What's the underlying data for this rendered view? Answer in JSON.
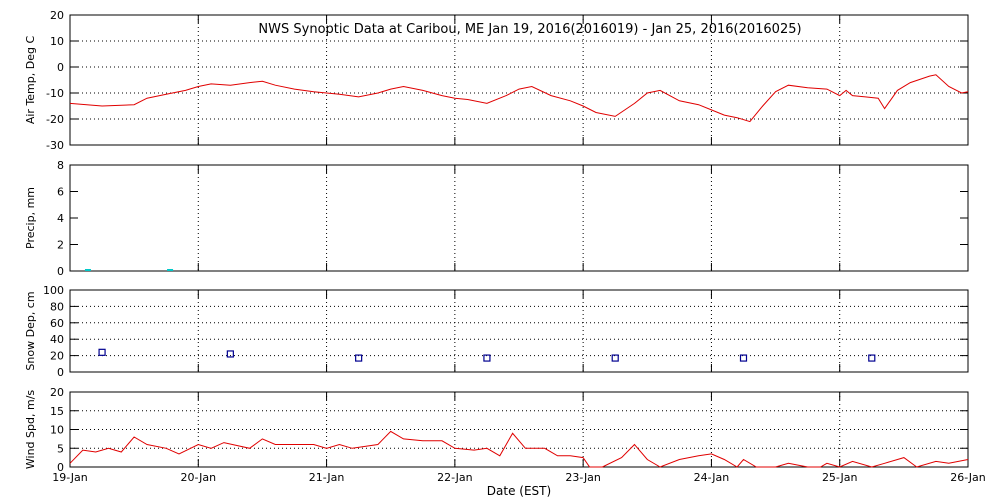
{
  "chart_data": [
    {
      "type": "line",
      "title": "NWS Synoptic Data at Caribou, ME   Jan 19, 2016(2016019) - Jan 25, 2016(2016025)",
      "ylabel": "Air Temp, Deg C",
      "grid": "both",
      "xlim": [
        0,
        7
      ],
      "xticks": [
        0,
        1,
        2,
        3,
        4,
        5,
        6,
        7
      ],
      "ylim": [
        -30,
        20
      ],
      "yticks": [
        -30,
        -20,
        -10,
        0,
        10,
        20
      ],
      "series": [
        {
          "color": "#e00000",
          "x": [
            0,
            0.25,
            0.5,
            0.6,
            0.75,
            0.9,
            1.0,
            1.1,
            1.25,
            1.4,
            1.5,
            1.6,
            1.75,
            1.9,
            2.0,
            2.1,
            2.25,
            2.4,
            2.5,
            2.6,
            2.75,
            2.9,
            3.0,
            3.1,
            3.25,
            3.4,
            3.5,
            3.6,
            3.75,
            3.9,
            4.0,
            4.1,
            4.25,
            4.4,
            4.5,
            4.6,
            4.75,
            4.9,
            5.0,
            5.1,
            5.2,
            5.3,
            5.4,
            5.5,
            5.6,
            5.75,
            5.9,
            6.0,
            6.05,
            6.1,
            6.2,
            6.3,
            6.35,
            6.45,
            6.55,
            6.7,
            6.75,
            6.85,
            6.95,
            7.0
          ],
          "values": [
            -14,
            -15,
            -14.5,
            -12,
            -10.5,
            -9,
            -7.5,
            -6.5,
            -7,
            -6,
            -5.5,
            -7,
            -8.5,
            -9.5,
            -10,
            -10.5,
            -11.5,
            -10,
            -8.5,
            -7.5,
            -9,
            -11,
            -12,
            -12.5,
            -14,
            -11,
            -8.5,
            -7.5,
            -11,
            -13,
            -15,
            -17.5,
            -19,
            -14,
            -10,
            -9,
            -13,
            -14.5,
            -16.5,
            -18.5,
            -19.5,
            -21,
            -15,
            -9.5,
            -7,
            -8,
            -8.5,
            -11,
            -9,
            -11,
            -11.5,
            -12,
            -16,
            -9,
            -6,
            -3.5,
            -3,
            -7.5,
            -10,
            -9.5
          ]
        }
      ]
    },
    {
      "type": "bar",
      "ylabel": "Precip, mm",
      "grid": "x",
      "xlim": [
        0,
        7
      ],
      "xticks": [
        0,
        1,
        2,
        3,
        4,
        5,
        6,
        7
      ],
      "ylim": [
        0,
        8
      ],
      "yticks": [
        0,
        2,
        4,
        6,
        8
      ],
      "series": [
        {
          "color": "#00c8c8",
          "x": [
            0.14,
            0.78
          ],
          "values": [
            0,
            0
          ]
        }
      ]
    },
    {
      "type": "scatter",
      "ylabel": "Snow Dep, cm",
      "grid": "both",
      "xlim": [
        0,
        7
      ],
      "xticks": [
        0,
        1,
        2,
        3,
        4,
        5,
        6,
        7
      ],
      "ylim": [
        0,
        100
      ],
      "yticks": [
        0,
        20,
        40,
        60,
        80,
        100
      ],
      "series": [
        {
          "color": "#000090",
          "x": [
            0.25,
            1.25,
            2.25,
            3.25,
            4.25,
            5.25,
            6.25
          ],
          "values": [
            24,
            22,
            17,
            17,
            17,
            17,
            17
          ]
        }
      ]
    },
    {
      "type": "line",
      "ylabel": "Wind Spd, m/s",
      "xlabel": "Date (EST)",
      "grid": "both",
      "xlim": [
        0,
        7
      ],
      "xticks": [
        {
          "value": 0,
          "label": "19-Jan"
        },
        {
          "value": 1,
          "label": "20-Jan"
        },
        {
          "value": 2,
          "label": "21-Jan"
        },
        {
          "value": 3,
          "label": "22-Jan"
        },
        {
          "value": 4,
          "label": "23-Jan"
        },
        {
          "value": 5,
          "label": "24-Jan"
        },
        {
          "value": 6,
          "label": "25-Jan"
        },
        {
          "value": 7,
          "label": "26-Jan"
        }
      ],
      "ylim": [
        0,
        20
      ],
      "yticks": [
        0,
        5,
        10,
        15,
        20
      ],
      "series": [
        {
          "color": "#e00000",
          "x": [
            0,
            0.1,
            0.2,
            0.3,
            0.4,
            0.5,
            0.6,
            0.75,
            0.85,
            1.0,
            1.1,
            1.2,
            1.4,
            1.5,
            1.6,
            1.75,
            1.9,
            2.0,
            2.1,
            2.2,
            2.4,
            2.5,
            2.6,
            2.75,
            2.9,
            3.0,
            3.15,
            3.25,
            3.35,
            3.45,
            3.55,
            3.7,
            3.8,
            3.9,
            4.0,
            4.05,
            4.15,
            4.3,
            4.4,
            4.5,
            4.6,
            4.75,
            4.9,
            5.0,
            5.1,
            5.2,
            5.25,
            5.35,
            5.5,
            5.6,
            5.75,
            5.85,
            5.9,
            6.0,
            6.1,
            6.25,
            6.35,
            6.5,
            6.6,
            6.75,
            6.85,
            7.0
          ],
          "values": [
            1,
            4.5,
            4,
            5,
            4,
            8,
            6,
            5,
            3.5,
            6,
            5,
            6.5,
            5,
            7.5,
            6,
            6,
            6,
            5,
            6,
            5,
            6,
            9.5,
            7.5,
            7,
            7,
            5,
            4.5,
            5,
            3,
            9,
            5,
            5,
            3,
            3,
            2.5,
            0,
            0,
            2.5,
            6,
            2,
            0,
            2,
            3,
            3.5,
            2,
            0,
            2,
            0,
            0,
            1,
            0,
            0,
            1,
            0,
            1.5,
            0,
            1,
            2.5,
            0,
            1.5,
            1,
            2
          ]
        }
      ]
    }
  ]
}
